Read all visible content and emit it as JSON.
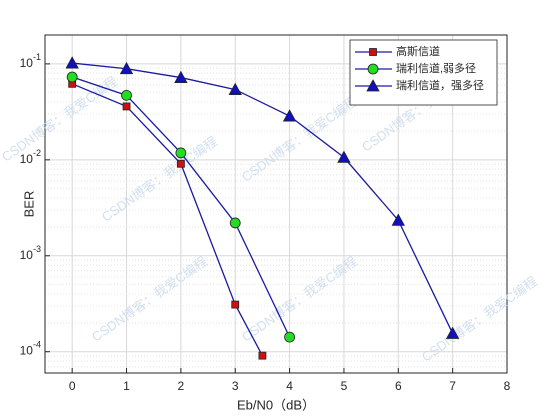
{
  "chart_data": {
    "type": "line",
    "y_scale": "log",
    "grid": true,
    "legend_position": "northeast",
    "xlabel": "Eb/N0（dB）",
    "ylabel": "BER",
    "watermark": "CSDN博客：我爱C编程",
    "xlim": [
      -0.5,
      8
    ],
    "xticks": [
      0,
      1,
      2,
      3,
      4,
      5,
      6,
      7,
      8
    ],
    "ylim": [
      6e-05,
      0.2
    ],
    "yticks": [
      {
        "value": 0.0001,
        "label": "10^-4"
      },
      {
        "value": 0.001,
        "label": "10^-3"
      },
      {
        "value": 0.01,
        "label": "10^-2"
      },
      {
        "value": 0.1,
        "label": "10^-1"
      }
    ],
    "line_color": "#1a1aa0",
    "series": [
      {
        "name": "高斯信道",
        "marker": "square",
        "color": "#cc1111",
        "x": [
          0,
          1,
          2,
          3,
          3.5
        ],
        "values": [
          0.062,
          0.036,
          0.0091,
          0.00031,
          9.1e-05
        ]
      },
      {
        "name": "瑞利信道,弱多径",
        "marker": "circle",
        "color": "#22dd22",
        "x": [
          0,
          1,
          2,
          3,
          4
        ],
        "values": [
          0.073,
          0.047,
          0.0118,
          0.0022,
          0.000142
        ]
      },
      {
        "name": "瑞利信道，强多径",
        "marker": "triangle",
        "color": "#1010c0",
        "x": [
          0,
          1,
          2,
          3,
          4,
          5,
          6,
          7
        ],
        "values": [
          0.102,
          0.089,
          0.072,
          0.054,
          0.0286,
          0.0106,
          0.00234,
          0.000155
        ]
      }
    ]
  }
}
